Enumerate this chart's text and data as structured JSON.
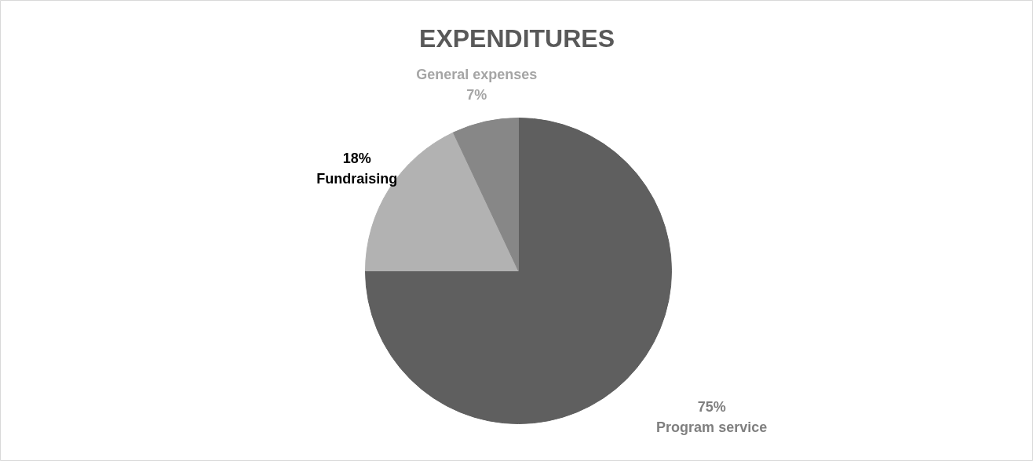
{
  "chart_data": {
    "type": "pie",
    "title": "EXPENDITURES",
    "categories": [
      "Program service",
      "Fundraising",
      "General expenses"
    ],
    "values": [
      75,
      18,
      7
    ],
    "colors": [
      "#5f5f5f",
      "#b2b2b2",
      "#878787"
    ],
    "value_labels": [
      "75%",
      "18%",
      "7%"
    ]
  }
}
